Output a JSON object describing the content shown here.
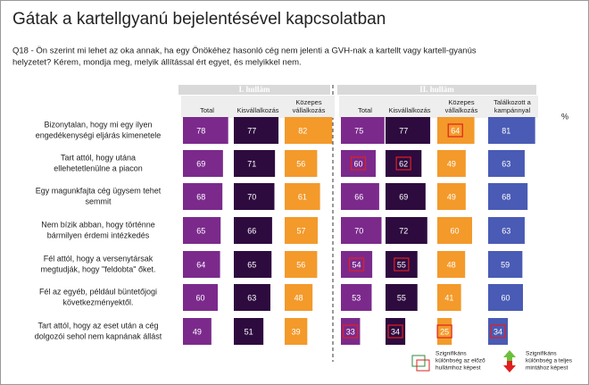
{
  "title": "Gátak a kartellgyanú bejelentésével kapcsolatban",
  "question": [
    "Q18 - Ön szerint mi lehet az oka annak, ha egy Önökéhez hasonló cég nem jelenti a GVH-nak a kartellt vagy kartell-gyanús",
    "helyzetet? Kérem, mondja meg, melyik állítással ért egyet, és melyikkel nem."
  ],
  "unit": "%",
  "waves": [
    "I. hullám",
    "II. hullám"
  ],
  "columns": [
    {
      "label": [
        "Total"
      ],
      "color": "#7b2a8c",
      "wave": 0
    },
    {
      "label": [
        "Kisvállalkozás"
      ],
      "color": "#2e0b3f",
      "wave": 0
    },
    {
      "label": [
        "Közepes",
        "vállalkozás"
      ],
      "color": "#f39a2b",
      "wave": 0
    },
    {
      "label": [
        "Total"
      ],
      "color": "#7b2a8c",
      "wave": 1
    },
    {
      "label": [
        "Kisvállalkozás"
      ],
      "color": "#2e0b3f",
      "wave": 1
    },
    {
      "label": [
        "Közepes",
        "vállalkozás"
      ],
      "color": "#f39a2b",
      "wave": 1
    },
    {
      "label": [
        "Találkozott a",
        "kampánnyal"
      ],
      "color": "#4a5bb5",
      "wave": 1
    }
  ],
  "rows": [
    {
      "label": [
        "Bizonytalan, hogy mi egy ilyen",
        "engedékenységi eljárás kimenetele"
      ],
      "values": [
        78,
        77,
        82,
        75,
        77,
        64,
        81
      ],
      "significant": [
        5
      ]
    },
    {
      "label": [
        "Tart attól, hogy utána",
        "ellehetetlenülne a piacon"
      ],
      "values": [
        69,
        71,
        56,
        60,
        62,
        49,
        63
      ],
      "significant": [
        3,
        4
      ]
    },
    {
      "label": [
        "Egy magunkfajta cég ügysem tehet",
        "semmit"
      ],
      "values": [
        68,
        70,
        61,
        66,
        69,
        49,
        68
      ],
      "significant": []
    },
    {
      "label": [
        "Nem bízik abban, hogy történne",
        "bármilyen érdemi intézkedés"
      ],
      "values": [
        65,
        66,
        57,
        70,
        72,
        60,
        63
      ],
      "significant": []
    },
    {
      "label": [
        "Fél attól, hogy a versenytársak",
        "megtudják, hogy \"feldobta\" őket."
      ],
      "values": [
        64,
        65,
        56,
        54,
        55,
        48,
        59
      ],
      "significant": [
        3,
        4
      ]
    },
    {
      "label": [
        "Fél az egyéb, például büntetőjogi",
        "következményektől."
      ],
      "values": [
        60,
        63,
        48,
        53,
        55,
        41,
        60
      ],
      "significant": []
    },
    {
      "label": [
        "Tart attól, hogy az eset után a cég",
        "dolgozói sehol nem kapnának állást"
      ],
      "values": [
        49,
        51,
        39,
        33,
        34,
        25,
        34
      ],
      "significant": [
        3,
        4,
        5,
        6
      ]
    }
  ],
  "legend": [
    [
      "Szignifikáns",
      "különbség az előző",
      "hullámhoz képest"
    ],
    [
      "Szignifikáns",
      "különbség a teljes",
      "mintához képest"
    ]
  ]
}
